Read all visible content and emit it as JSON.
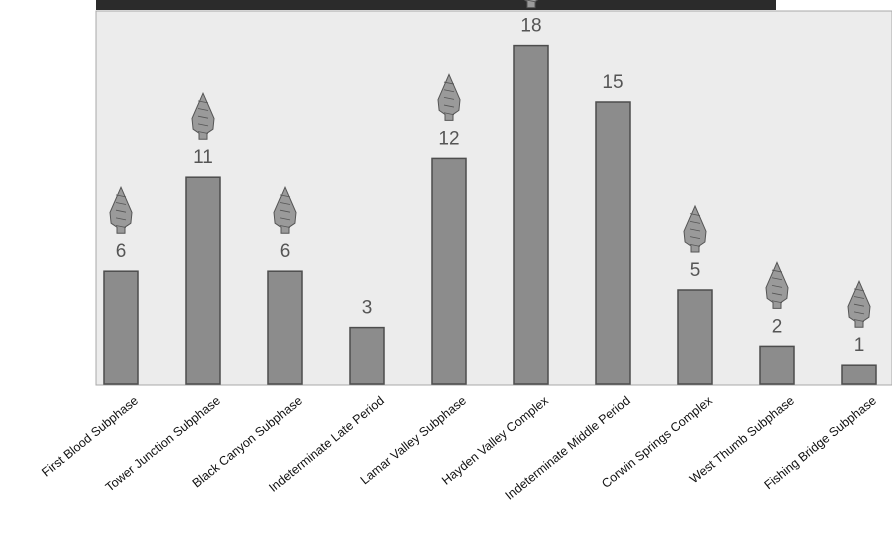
{
  "chart_data": {
    "type": "bar",
    "title": "",
    "xlabel": "",
    "ylabel": "",
    "ylim": [
      0,
      20
    ],
    "grid": false,
    "categories": [
      "First Blood Subphase",
      "Tower Junction Subphase",
      "Black Canyon Subphase",
      "Indeterminate Late Period",
      "Lamar Valley Subphase",
      "Hayden Valley Complex",
      "Indeterminate Middle Period",
      "Corwin Springs Complex",
      "West Thumb Subphase",
      "Fishing Bridge Subphase"
    ],
    "values": [
      6,
      11,
      6,
      3,
      12,
      18,
      15,
      5,
      2,
      1
    ],
    "data_labels": [
      "6",
      "11",
      "6",
      "3",
      "12",
      "18",
      "15",
      "5",
      "2",
      "1"
    ],
    "icons": [
      "projectile-point-icon",
      "projectile-point-icon",
      "projectile-point-icon",
      "",
      "projectile-point-icon",
      "projectile-point-icon",
      "",
      "projectile-point-icon",
      "projectile-point-icon",
      "projectile-point-icon"
    ],
    "colors": {
      "bar_fill": "#8c8c8c",
      "bar_edge": "#4d4d4d",
      "plot_bg": "#ececec",
      "plot_border": "#a8a8a8",
      "label_text": "#555555",
      "icon_fill": "#9a9a9a",
      "icon_edge": "#555555"
    }
  }
}
